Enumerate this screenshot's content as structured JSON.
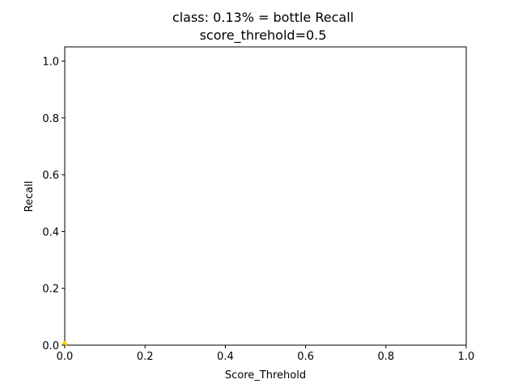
{
  "chart_data": {
    "type": "scatter",
    "title": "class: 0.13% = bottle Recall",
    "subtitle": "score_threhold=0.5",
    "xlabel": "Score_Threhold",
    "ylabel": "Recall",
    "xlim": [
      0.0,
      1.0
    ],
    "ylim": [
      0.0,
      1.05
    ],
    "x_ticks": [
      "0.0",
      "0.2",
      "0.4",
      "0.6",
      "0.8",
      "1.0"
    ],
    "y_ticks": [
      "0.0",
      "0.2",
      "0.4",
      "0.6",
      "0.8",
      "1.0"
    ],
    "grid": false,
    "series": [
      {
        "color": "#ffd700",
        "x": [
          0.0
        ],
        "y": [
          0.0
        ]
      }
    ]
  }
}
